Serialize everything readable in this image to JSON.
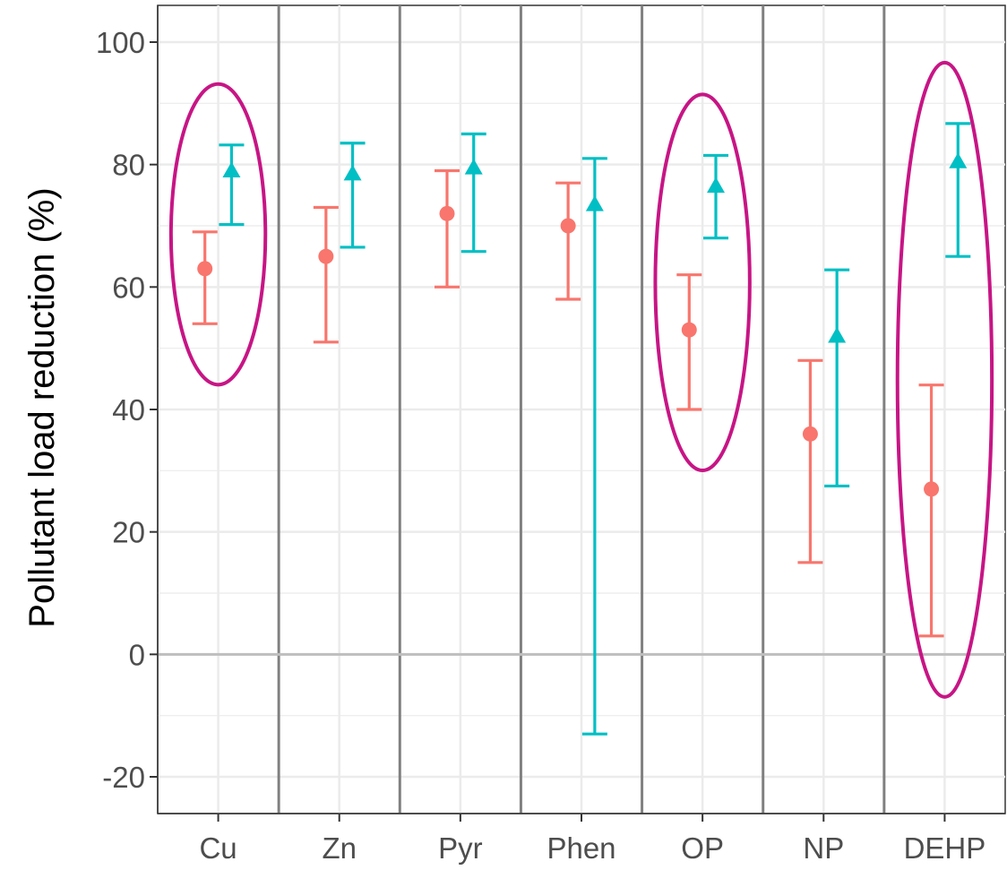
{
  "chart_data": {
    "type": "scatter",
    "title": "",
    "xlabel": "",
    "ylabel": "Pollutant load reduction (%)",
    "ylim": [
      -26,
      106
    ],
    "yticks": [
      -20,
      0,
      20,
      40,
      60,
      80,
      100
    ],
    "grid": true,
    "legend": "none",
    "categories": [
      "Cu",
      "Zn",
      "Pyr",
      "Phen",
      "OP",
      "NP",
      "DEHP"
    ],
    "series": [
      {
        "marker": "circle",
        "color": "#F8766D",
        "values": [
          63,
          65,
          72,
          70,
          53,
          36,
          27
        ],
        "lower": [
          54,
          51,
          60,
          58,
          40,
          15,
          3
        ],
        "upper": [
          69,
          73,
          79,
          77,
          62,
          48,
          44
        ]
      },
      {
        "marker": "triangle",
        "color": "#00BFC4",
        "values": [
          79,
          78.5,
          79.5,
          73.5,
          76.5,
          52,
          80.5
        ],
        "lower": [
          70.2,
          66.5,
          65.8,
          -13,
          68,
          27.5,
          65
        ],
        "upper": [
          83.2,
          83.5,
          85,
          81,
          81.5,
          62.8,
          86.7
        ]
      }
    ],
    "highlighted_categories": [
      "Cu",
      "OP",
      "DEHP"
    ],
    "highlight_color": "#C71585"
  }
}
